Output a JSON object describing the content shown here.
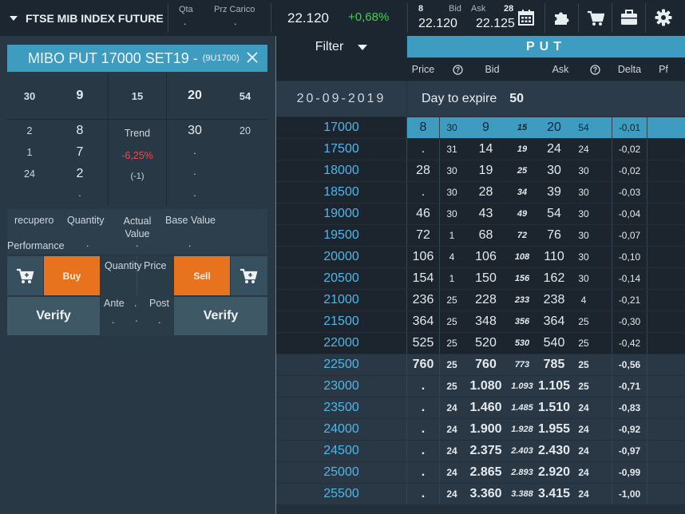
{
  "topbar": {
    "instrument": "FTSE MIB INDEX FUTURE",
    "qta_label": "Qta",
    "qta_value": ".",
    "przcarico_label": "Prz Carico",
    "przcarico_value": ".",
    "last_price": "22.120",
    "change": "+0,68%",
    "bid_qty": "8",
    "bid_label": "Bid",
    "bid_value": "22.120",
    "ask_label": "Ask",
    "ask_qty": "28",
    "ask_value": "22.125",
    "icons": [
      "calendar-icon",
      "puzzle-icon",
      "cart-icon",
      "briefcase-icon",
      "gear-icon"
    ]
  },
  "grid": {
    "filter_label": "Filter",
    "put_label": "PUT",
    "headers": [
      "Price",
      "?",
      "Bid",
      "Ask",
      "?",
      "Delta",
      "Pf"
    ],
    "expiry_date": "20-09-2019",
    "day_to_expire_label": "Day to expire",
    "day_to_expire_value": "50",
    "rows": [
      {
        "strike": "17000",
        "price": "8",
        "q1": "30",
        "bid": "9",
        "r": "15",
        "ask": "20",
        "q2": "54",
        "delta": "-0,01"
      },
      {
        "strike": "17500",
        "price": ".",
        "q1": "31",
        "bid": "14",
        "r": "19",
        "ask": "24",
        "q2": "24",
        "delta": "-0,02"
      },
      {
        "strike": "18000",
        "price": "28",
        "q1": "30",
        "bid": "19",
        "r": "25",
        "ask": "30",
        "q2": "30",
        "delta": "-0,02"
      },
      {
        "strike": "18500",
        "price": ".",
        "q1": "30",
        "bid": "28",
        "r": "34",
        "ask": "39",
        "q2": "30",
        "delta": "-0,03"
      },
      {
        "strike": "19000",
        "price": "46",
        "q1": "30",
        "bid": "43",
        "r": "49",
        "ask": "54",
        "q2": "30",
        "delta": "-0,04"
      },
      {
        "strike": "19500",
        "price": "72",
        "q1": "1",
        "bid": "68",
        "r": "72",
        "ask": "76",
        "q2": "30",
        "delta": "-0,07"
      },
      {
        "strike": "20000",
        "price": "106",
        "q1": "4",
        "bid": "106",
        "r": "108",
        "ask": "110",
        "q2": "30",
        "delta": "-0,10"
      },
      {
        "strike": "20500",
        "price": "154",
        "q1": "1",
        "bid": "150",
        "r": "156",
        "ask": "162",
        "q2": "30",
        "delta": "-0,14"
      },
      {
        "strike": "21000",
        "price": "236",
        "q1": "25",
        "bid": "228",
        "r": "233",
        "ask": "238",
        "q2": "4",
        "delta": "-0,21"
      },
      {
        "strike": "21500",
        "price": "364",
        "q1": "25",
        "bid": "348",
        "r": "356",
        "ask": "364",
        "q2": "25",
        "delta": "-0,30"
      },
      {
        "strike": "22000",
        "price": "525",
        "q1": "25",
        "bid": "520",
        "r": "530",
        "ask": "540",
        "q2": "25",
        "delta": "-0,42"
      },
      {
        "strike": "22500",
        "price": "760",
        "q1": "25",
        "bid": "760",
        "r": "773",
        "ask": "785",
        "q2": "25",
        "delta": "-0,56"
      },
      {
        "strike": "23000",
        "price": ".",
        "q1": "25",
        "bid": "1.080",
        "r": "1.093",
        "ask": "1.105",
        "q2": "25",
        "delta": "-0,71"
      },
      {
        "strike": "23500",
        "price": ".",
        "q1": "24",
        "bid": "1.460",
        "r": "1.485",
        "ask": "1.510",
        "q2": "24",
        "delta": "-0,83"
      },
      {
        "strike": "24000",
        "price": ".",
        "q1": "24",
        "bid": "1.900",
        "r": "1.928",
        "ask": "1.955",
        "q2": "24",
        "delta": "-0,92"
      },
      {
        "strike": "24500",
        "price": ".",
        "q1": "24",
        "bid": "2.375",
        "r": "2.403",
        "ask": "2.430",
        "q2": "24",
        "delta": "-0,97"
      },
      {
        "strike": "25000",
        "price": ".",
        "q1": "24",
        "bid": "2.865",
        "r": "2.893",
        "ask": "2.920",
        "q2": "24",
        "delta": "-0,99"
      },
      {
        "strike": "25500",
        "price": ".",
        "q1": "24",
        "bid": "3.360",
        "r": "3.388",
        "ask": "3.415",
        "q2": "24",
        "delta": "-1,00"
      }
    ]
  },
  "panel": {
    "title": "MIBO PUT 17000 SET19 -",
    "code": "(9U1700)",
    "book_top": {
      "bid_qty": "30",
      "bid": "9",
      "mid": "15",
      "ask": "20",
      "ask_qty": "54"
    },
    "book_left": [
      [
        "2",
        "8"
      ],
      [
        "1",
        "7"
      ],
      [
        "24",
        "2"
      ],
      [
        "",
        "."
      ]
    ],
    "trend_label": "Trend",
    "trend_value": "-6,25%",
    "trend_count": "(-1)",
    "book_right": [
      [
        "30",
        "20"
      ],
      [
        ".",
        ""
      ],
      [
        ".",
        ""
      ],
      [
        ".",
        ""
      ]
    ],
    "perf": {
      "recupero_label": "recupero",
      "quantity_label": "Quantity",
      "actual_value_label": "Actual Value",
      "base_value_label": "Base Value",
      "performance_label": "Performance",
      "v1": ".",
      "v2": ".",
      "v3": "."
    },
    "buy_label": "Buy",
    "sell_label": "Sell",
    "quantity_label": "Quantity",
    "price_label": "Price",
    "ante_label": "Ante",
    "post_label": "Post",
    "ante_value": ".",
    "mid_value": ".",
    "post_value": ".",
    "dot_sep": ".",
    "verify_label": "Verify"
  },
  "colors": {
    "accent": "#3d9cbf",
    "strike": "#4fb6e6",
    "buy": "#e8731e",
    "negative": "#f04b4b",
    "positive": "#3fd24a"
  }
}
